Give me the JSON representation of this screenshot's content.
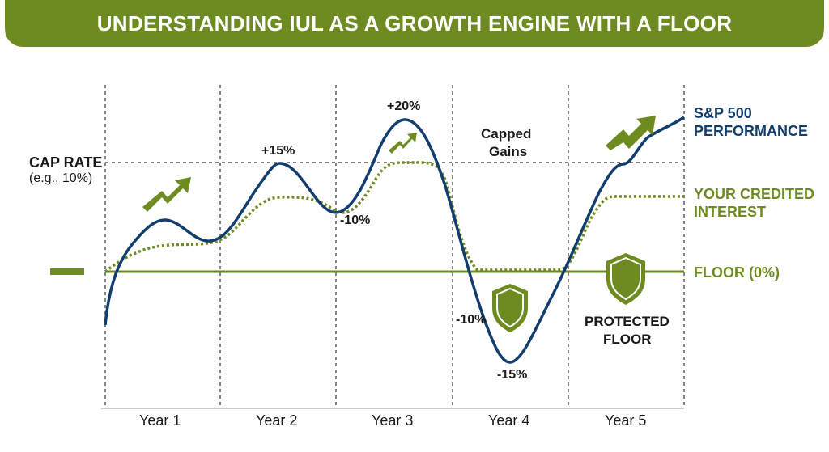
{
  "title": "UNDERSTANDING IUL AS A GROWTH ENGINE WITH A FLOOR",
  "labels": {
    "cap_rate_title": "CAP RATE",
    "cap_rate_example": "(e.g., 10%)",
    "sp500_line1": "S&P 500",
    "sp500_line2": "PERFORMANCE",
    "credited_line1": "YOUR CREDITED",
    "credited_line2": "INTEREST",
    "floor": "FLOOR (0%)",
    "capped_line1": "Capped",
    "capped_line2": "Gains",
    "protected_line1": "PROTECTED",
    "protected_line2": "FLOOR"
  },
  "point_labels": {
    "y2_peak": "+15%",
    "y2_trough": "-10%",
    "y3_peak": "+20%",
    "y4_drop": "-10%",
    "y4_trough": "-15%"
  },
  "years": [
    "Year 1",
    "Year 2",
    "Year 3",
    "Year 4",
    "Year 5"
  ],
  "colors": {
    "banner": "#6e8b22",
    "sp500": "#123e6e",
    "credited": "#6e8b22",
    "floor": "#6e8b22",
    "grid": "#333333"
  },
  "icons": [
    "trend-up-arrow-icon",
    "shield-icon"
  ]
}
